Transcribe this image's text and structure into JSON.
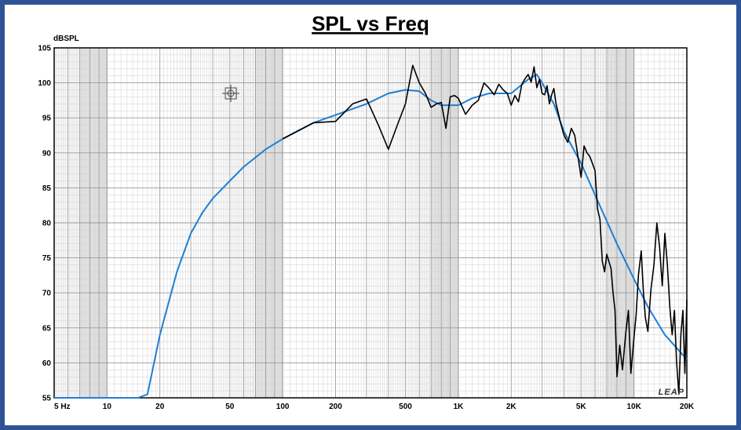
{
  "chart_data": {
    "type": "line",
    "title": "SPL vs Freq",
    "ylabel": "dBSPL",
    "xlabel": "",
    "x_scale": "log",
    "xlim": [
      5,
      20000
    ],
    "ylim": [
      55,
      105
    ],
    "y_ticks": [
      105,
      100,
      95,
      90,
      85,
      80,
      75,
      70,
      65,
      60,
      55
    ],
    "x_ticks": [
      {
        "value": 5,
        "label": "5  Hz"
      },
      {
        "value": 10,
        "label": "10"
      },
      {
        "value": 20,
        "label": "20"
      },
      {
        "value": 50,
        "label": "50"
      },
      {
        "value": 100,
        "label": "100"
      },
      {
        "value": 200,
        "label": "200"
      },
      {
        "value": 500,
        "label": "500"
      },
      {
        "value": 1000,
        "label": "1K"
      },
      {
        "value": 2000,
        "label": "2K"
      },
      {
        "value": 5000,
        "label": "5K"
      },
      {
        "value": 10000,
        "label": "10K"
      },
      {
        "value": 20000,
        "label": "20K"
      }
    ],
    "grid": true,
    "watermark": "LEAP",
    "series": [
      {
        "color": "#1f7fd4",
        "x": [
          5,
          10,
          15,
          17,
          20,
          25,
          30,
          35,
          40,
          50,
          60,
          80,
          100,
          150,
          200,
          300,
          400,
          500,
          600,
          700,
          800,
          1000,
          1200,
          1500,
          2000,
          2500,
          2800,
          3000,
          3500,
          4000,
          5000,
          6000,
          8000,
          10000,
          12000,
          15000,
          20000
        ],
        "y": [
          55,
          55,
          55,
          55.5,
          64,
          73,
          78.5,
          81.5,
          83.5,
          86,
          88,
          90.5,
          92,
          94.3,
          95.4,
          97,
          98.5,
          99,
          98.8,
          97.5,
          96.8,
          96.8,
          97.8,
          98.5,
          98.5,
          100.5,
          101.2,
          100,
          97,
          93,
          88.5,
          84,
          77,
          72,
          68,
          64,
          60.5
        ]
      },
      {
        "color": "#000000",
        "x": [
          100,
          150,
          200,
          250,
          300,
          350,
          400,
          450,
          500,
          550,
          600,
          650,
          700,
          750,
          800,
          850,
          900,
          950,
          1000,
          1100,
          1200,
          1300,
          1400,
          1500,
          1600,
          1700,
          1800,
          1900,
          2000,
          2100,
          2200,
          2300,
          2400,
          2500,
          2600,
          2700,
          2800,
          2900,
          3000,
          3100,
          3200,
          3300,
          3400,
          3500,
          3600,
          3700,
          3800,
          4000,
          4200,
          4400,
          4600,
          4800,
          5000,
          5200,
          5400,
          5600,
          5800,
          6000,
          6200,
          6400,
          6600,
          6800,
          7000,
          7200,
          7400,
          7600,
          7800,
          8000,
          8300,
          8600,
          9000,
          9300,
          9600,
          10000,
          10300,
          10600,
          11000,
          11300,
          11600,
          12000,
          12500,
          13000,
          13500,
          14000,
          14500,
          15000,
          15500,
          16000,
          16500,
          17000,
          17500,
          18000,
          18500,
          19000,
          19500,
          20000
        ],
        "y": [
          92,
          94.3,
          94.5,
          97,
          97.7,
          94,
          90.5,
          94,
          97,
          102.5,
          100,
          98.5,
          96.5,
          97,
          97.2,
          93.5,
          98,
          98.2,
          97.8,
          95.5,
          96.8,
          97.5,
          100,
          99.2,
          98.3,
          99.8,
          99,
          98.5,
          96.8,
          98.2,
          97.3,
          99.8,
          100.6,
          101.2,
          100.1,
          102.3,
          99.3,
          100.5,
          98.5,
          98.3,
          99.6,
          97,
          98.3,
          99.2,
          97,
          95.8,
          94.5,
          92.5,
          91.5,
          93.5,
          92.5,
          89.5,
          86.5,
          91,
          90,
          89.5,
          88.5,
          87.5,
          82,
          80.5,
          74.5,
          73,
          75.5,
          74.5,
          73.5,
          70,
          67.5,
          58,
          62.5,
          59,
          64.5,
          67.5,
          58.5,
          63.5,
          67,
          72.5,
          76,
          70.5,
          66.5,
          64.5,
          70.5,
          74,
          80,
          76.5,
          71,
          78.5,
          74,
          68,
          64,
          67.5,
          60,
          55.5,
          64,
          67.5,
          58.5,
          69
        ]
      }
    ]
  }
}
